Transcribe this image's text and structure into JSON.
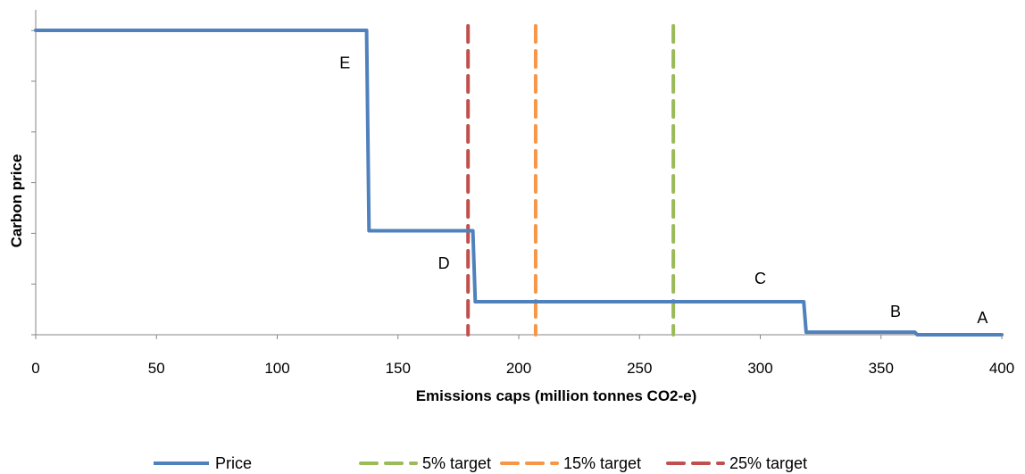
{
  "chart_data": {
    "type": "line",
    "xlabel": "Emissions caps (million tonnes CO2-e)",
    "ylabel": "Carbon price",
    "xlim": [
      0,
      400
    ],
    "ylim": [
      0,
      12
    ],
    "x_ticks": [
      0,
      50,
      100,
      150,
      200,
      250,
      300,
      350,
      400
    ],
    "y_tick_count": 6,
    "y_tick_labels_shown": false,
    "grid": false,
    "legend_position": "bottom",
    "series": [
      {
        "name": "Price",
        "color": "#4F81BD",
        "style": "solid",
        "points": [
          [
            0,
            12.0
          ],
          [
            137,
            12.0
          ],
          [
            138,
            4.1
          ],
          [
            181,
            4.1
          ],
          [
            182,
            1.3
          ],
          [
            318,
            1.3
          ],
          [
            319,
            0.1
          ],
          [
            364,
            0.1
          ],
          [
            365,
            0
          ],
          [
            400,
            0
          ]
        ]
      },
      {
        "name": "5% target",
        "color": "#9BBB59",
        "style": "dashed",
        "x": 264
      },
      {
        "name": "15% target",
        "color": "#F79646",
        "style": "dashed",
        "x": 207
      },
      {
        "name": "25% target",
        "color": "#C0504D",
        "style": "dashed",
        "x": 179
      }
    ],
    "annotations": [
      {
        "text": "E",
        "x": 128,
        "y": 10.5
      },
      {
        "text": "D",
        "x": 169,
        "y": 2.6
      },
      {
        "text": "C",
        "x": 300,
        "y": 2.0
      },
      {
        "text": "B",
        "x": 356,
        "y": 0.7
      },
      {
        "text": "A",
        "x": 392,
        "y": 0.45
      }
    ]
  }
}
